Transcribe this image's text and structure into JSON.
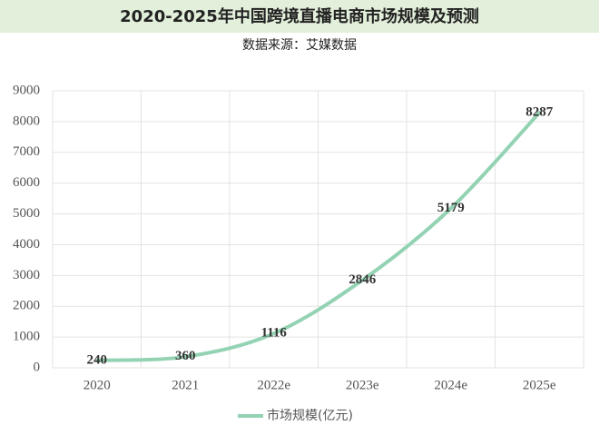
{
  "chart_data": {
    "type": "line",
    "title": "2020-2025年中国跨境直播电商市场规模及预测",
    "subtitle": "数据来源：艾媒数据",
    "categories": [
      "2020",
      "2021",
      "2022e",
      "2023e",
      "2024e",
      "2025e"
    ],
    "series": [
      {
        "name": "市场规模(亿元)",
        "color": "#93d3b3",
        "values": [
          240,
          360,
          1116,
          2846,
          5179,
          8287
        ]
      }
    ],
    "ylim": [
      0,
      9000
    ],
    "yticks": [
      0,
      1000,
      2000,
      3000,
      4000,
      5000,
      6000,
      7000,
      8000,
      9000
    ],
    "grid": true,
    "legend": "bottom"
  }
}
